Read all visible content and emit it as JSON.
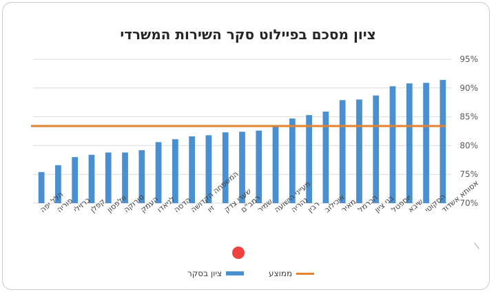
{
  "chart_data": {
    "type": "bar",
    "title": "ציון מסכם בפיילוט סקר השירות המשרדי",
    "categories": [
      "אסותא אשדוד",
      "הסקוטי",
      "שיבא",
      "יוספטל",
      "בני ציון",
      "הכרמל",
      "מאיר",
      "איכילוב",
      "רבין",
      "נהריה",
      "מעייני הישועה",
      "שמיר",
      "רמב\"ם",
      "שערי צדק",
      "זיו",
      "המשפחה הקדושה",
      "הדסה",
      "לניאדו",
      "העמק",
      "סורוקה",
      "וולפסון",
      "קפלן",
      "ברזילי",
      "פוריה",
      "הלל יפה"
    ],
    "series": [
      {
        "name": "ציון בסקר",
        "type": "bar",
        "values": [
          91.4,
          90.9,
          90.8,
          90.3,
          88.7,
          88.0,
          87.9,
          85.9,
          85.3,
          84.7,
          83.3,
          82.6,
          82.4,
          82.3,
          81.8,
          81.6,
          81.1,
          80.6,
          79.2,
          78.8,
          78.8,
          78.4,
          78.0,
          76.6,
          75.4
        ]
      },
      {
        "name": "ממוצע",
        "type": "line",
        "value": 83.4
      }
    ],
    "ylim": [
      70,
      95
    ],
    "yticks": [
      "95%",
      "90%",
      "85%",
      "80%",
      "75%",
      "70%"
    ],
    "ytick_values": [
      95,
      90,
      85,
      80,
      75,
      70
    ],
    "y_axis_side": "right",
    "grid": true,
    "legend_position": "bottom",
    "colors": {
      "bar": "#4a8fd0",
      "average": "#e4822d",
      "grid": "#d9d9d9"
    }
  }
}
